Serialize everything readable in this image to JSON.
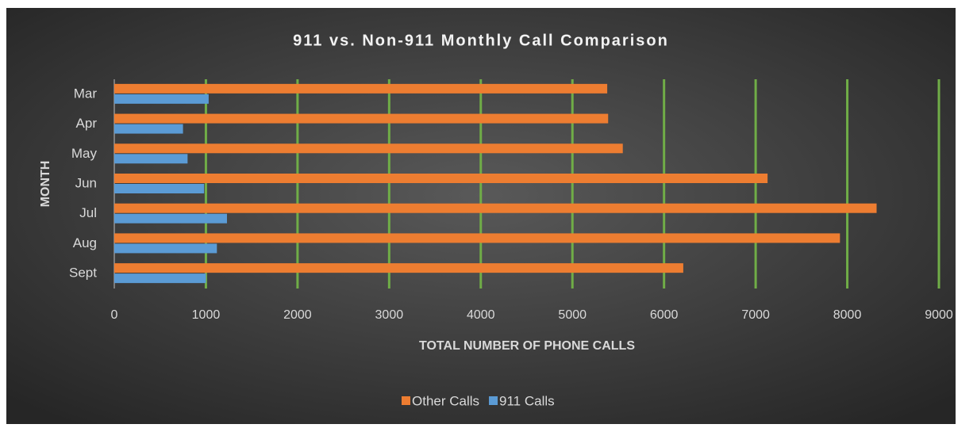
{
  "chart_data": {
    "type": "hbar",
    "title": "911 vs. Non-911 Monthly Call Comparison",
    "xlabel": "TOTAL NUMBER OF PHONE CALLS",
    "ylabel": "MONTH",
    "categories": [
      "Mar",
      "Apr",
      "May",
      "Jun",
      "Jul",
      "Aug",
      "Sept"
    ],
    "series": [
      {
        "name": "Other Calls",
        "color": "#ed7d31",
        "values": [
          5380,
          5390,
          5550,
          7130,
          8320,
          7920,
          6210
        ]
      },
      {
        "name": "911 Calls",
        "color": "#5b9bd5",
        "values": [
          1030,
          750,
          800,
          980,
          1230,
          1120,
          1000
        ]
      }
    ],
    "xlim": [
      0,
      9000
    ],
    "xticks": [
      0,
      1000,
      2000,
      3000,
      4000,
      5000,
      6000,
      7000,
      8000,
      9000
    ],
    "grid": true,
    "grid_color": "#70ad47",
    "legend": "bottom"
  }
}
